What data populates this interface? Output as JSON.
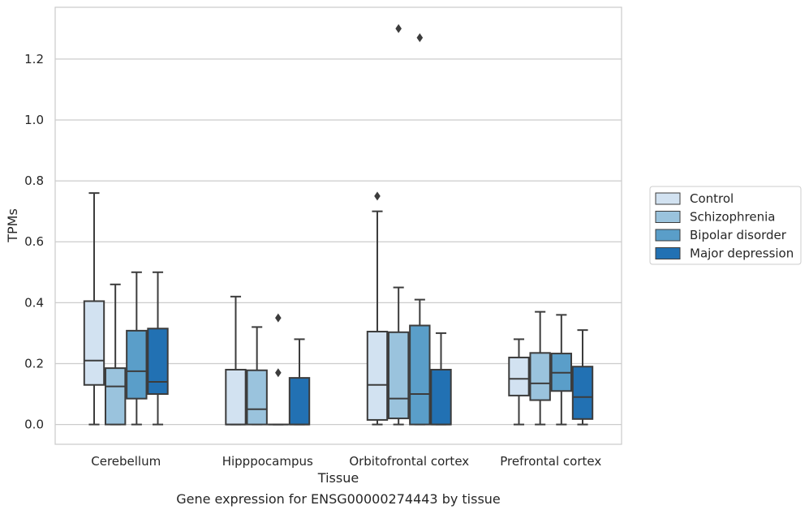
{
  "caption": "Gene expression for ENSG00000274443 by tissue",
  "chart_data": {
    "type": "box",
    "xlabel": "Tissue",
    "ylabel": "TPMs",
    "categories": [
      "Cerebellum",
      "Hipppocampus",
      "Orbitofrontal cortex",
      "Prefrontal cortex"
    ],
    "ylim": [
      -0.065,
      1.37
    ],
    "yticks": [
      0.0,
      0.2,
      0.4,
      0.6,
      0.8,
      1.0,
      1.2
    ],
    "ytick_labels": [
      "0.0",
      "0.2",
      "0.4",
      "0.6",
      "0.8",
      "1.0",
      "1.2"
    ],
    "grid": "horizontal",
    "legend_position": "right",
    "series": [
      {
        "name": "Control",
        "color": "#d2e2f1",
        "boxes": [
          {
            "whislo": 0.0,
            "q1": 0.13,
            "med": 0.21,
            "q3": 0.405,
            "whishi": 0.76,
            "fliers": []
          },
          {
            "whislo": 0.0,
            "q1": 0.0,
            "med": 0.0,
            "q3": 0.18,
            "whishi": 0.42,
            "fliers": []
          },
          {
            "whislo": 0.0,
            "q1": 0.015,
            "med": 0.13,
            "q3": 0.305,
            "whishi": 0.7,
            "fliers": [
              0.75
            ]
          },
          {
            "whislo": 0.0,
            "q1": 0.095,
            "med": 0.15,
            "q3": 0.22,
            "whishi": 0.28,
            "fliers": []
          }
        ]
      },
      {
        "name": "Schizophrenia",
        "color": "#9ac3dd",
        "boxes": [
          {
            "whislo": 0.0,
            "q1": 0.0,
            "med": 0.125,
            "q3": 0.185,
            "whishi": 0.46,
            "fliers": []
          },
          {
            "whislo": 0.0,
            "q1": 0.0,
            "med": 0.05,
            "q3": 0.178,
            "whishi": 0.32,
            "fliers": []
          },
          {
            "whislo": 0.0,
            "q1": 0.02,
            "med": 0.085,
            "q3": 0.303,
            "whishi": 0.45,
            "fliers": [
              1.3
            ]
          },
          {
            "whislo": 0.0,
            "q1": 0.08,
            "med": 0.135,
            "q3": 0.235,
            "whishi": 0.37,
            "fliers": []
          }
        ]
      },
      {
        "name": "Bipolar disorder",
        "color": "#5a9ec9",
        "boxes": [
          {
            "whislo": 0.0,
            "q1": 0.085,
            "med": 0.175,
            "q3": 0.308,
            "whishi": 0.5,
            "fliers": []
          },
          {
            "whislo": 0.0,
            "q1": 0.0,
            "med": 0.0,
            "q3": 0.0,
            "whishi": 0.0,
            "fliers": [
              0.35,
              0.17
            ]
          },
          {
            "whislo": 0.0,
            "q1": 0.0,
            "med": 0.1,
            "q3": 0.325,
            "whishi": 0.41,
            "fliers": [
              1.27
            ]
          },
          {
            "whislo": 0.0,
            "q1": 0.11,
            "med": 0.17,
            "q3": 0.233,
            "whishi": 0.36,
            "fliers": []
          }
        ]
      },
      {
        "name": "Major depression",
        "color": "#2271b3",
        "boxes": [
          {
            "whislo": 0.0,
            "q1": 0.1,
            "med": 0.14,
            "q3": 0.315,
            "whishi": 0.5,
            "fliers": []
          },
          {
            "whislo": 0.0,
            "q1": 0.0,
            "med": 0.0,
            "q3": 0.153,
            "whishi": 0.28,
            "fliers": []
          },
          {
            "whislo": 0.0,
            "q1": 0.0,
            "med": 0.0,
            "q3": 0.18,
            "whishi": 0.3,
            "fliers": []
          },
          {
            "whislo": 0.0,
            "q1": 0.018,
            "med": 0.09,
            "q3": 0.19,
            "whishi": 0.31,
            "fliers": []
          }
        ]
      }
    ]
  }
}
